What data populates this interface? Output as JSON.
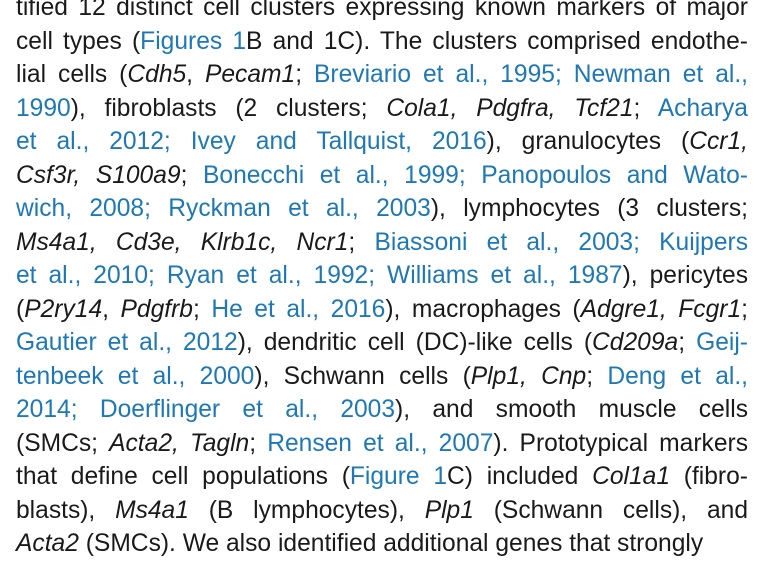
{
  "paragraph": {
    "lines": [
      [
        {
          "t": "tified 12 distinct cell clusters expressing known markers of major"
        }
      ],
      [
        {
          "t": "cell types ("
        },
        {
          "t": "Figures 1",
          "link": true
        },
        {
          "t": "B and 1C). The clusters comprised endothe-"
        }
      ],
      [
        {
          "t": "lial cells ("
        },
        {
          "t": "Cdh5",
          "i": true
        },
        {
          "t": ", "
        },
        {
          "t": "Pecam1",
          "i": true
        },
        {
          "t": "; "
        },
        {
          "t": "Breviario et al., 1995; Newman et al.,",
          "link": true
        }
      ],
      [
        {
          "t": "1990",
          "link": true
        },
        {
          "t": "), fibroblasts (2 clusters; "
        },
        {
          "t": "Cola1, Pdgfra, Tcf21",
          "i": true
        },
        {
          "t": "; "
        },
        {
          "t": "Acharya",
          "link": true
        }
      ],
      [
        {
          "t": "et al., 2012; Ivey and Tallquist, 2016",
          "link": true
        },
        {
          "t": "), granulocytes ("
        },
        {
          "t": "Ccr1,",
          "i": true
        }
      ],
      [
        {
          "t": "Csf3r, S100a9",
          "i": true
        },
        {
          "t": "; "
        },
        {
          "t": "Bonecchi et al., 1999; Panopoulos and Wato-",
          "link": true
        }
      ],
      [
        {
          "t": "wich, 2008; Ryckman et al., 2003",
          "link": true
        },
        {
          "t": "), lymphocytes (3 clusters;"
        }
      ],
      [
        {
          "t": "Ms4a1, Cd3e, Klrb1c, Ncr1",
          "i": true
        },
        {
          "t": "; "
        },
        {
          "t": "Biassoni et al., 2003; Kuijpers",
          "link": true
        }
      ],
      [
        {
          "t": "et al., 2010; Ryan et al., 1992; Williams et al., 1987",
          "link": true
        },
        {
          "t": "), pericytes"
        }
      ],
      [
        {
          "t": "("
        },
        {
          "t": "P2ry14",
          "i": true
        },
        {
          "t": ", "
        },
        {
          "t": "Pdgfrb",
          "i": true
        },
        {
          "t": "; "
        },
        {
          "t": "He et al., 2016",
          "link": true
        },
        {
          "t": "), macrophages ("
        },
        {
          "t": "Adgre1, Fcgr1",
          "i": true
        },
        {
          "t": ";"
        }
      ],
      [
        {
          "t": "Gautier et al., 2012",
          "link": true
        },
        {
          "t": "), dendritic cell (DC)-like cells ("
        },
        {
          "t": "Cd209a",
          "i": true
        },
        {
          "t": "; "
        },
        {
          "t": "Geij-",
          "link": true
        }
      ],
      [
        {
          "t": "tenbeek et al., 2000",
          "link": true
        },
        {
          "t": "), Schwann cells ("
        },
        {
          "t": "Plp1, Cnp",
          "i": true
        },
        {
          "t": "; "
        },
        {
          "t": "Deng et al.,",
          "link": true
        }
      ],
      [
        {
          "t": "2014; Doerflinger et al., 2003",
          "link": true
        },
        {
          "t": "), and smooth muscle cells"
        }
      ],
      [
        {
          "t": "(SMCs; "
        },
        {
          "t": "Acta2, Tagln",
          "i": true
        },
        {
          "t": "; "
        },
        {
          "t": "Rensen et al., 2007",
          "link": true
        },
        {
          "t": "). Prototypical markers"
        }
      ],
      [
        {
          "t": "that define cell populations ("
        },
        {
          "t": "Figure 1",
          "link": true
        },
        {
          "t": "C) included "
        },
        {
          "t": "Col1a1",
          "i": true
        },
        {
          "t": " (fibro-"
        }
      ],
      [
        {
          "t": "blasts), "
        },
        {
          "t": "Ms4a1",
          "i": true
        },
        {
          "t": " (B lymphocytes), "
        },
        {
          "t": "Plp1",
          "i": true
        },
        {
          "t": " (Schwann cells), and"
        }
      ],
      [
        {
          "t": "Acta2",
          "i": true
        },
        {
          "t": " (SMCs). We also identified additional genes that strongly"
        }
      ]
    ]
  },
  "colors": {
    "text": "#1a1a1a",
    "link": "#1f78b4",
    "background": "#ffffff"
  }
}
